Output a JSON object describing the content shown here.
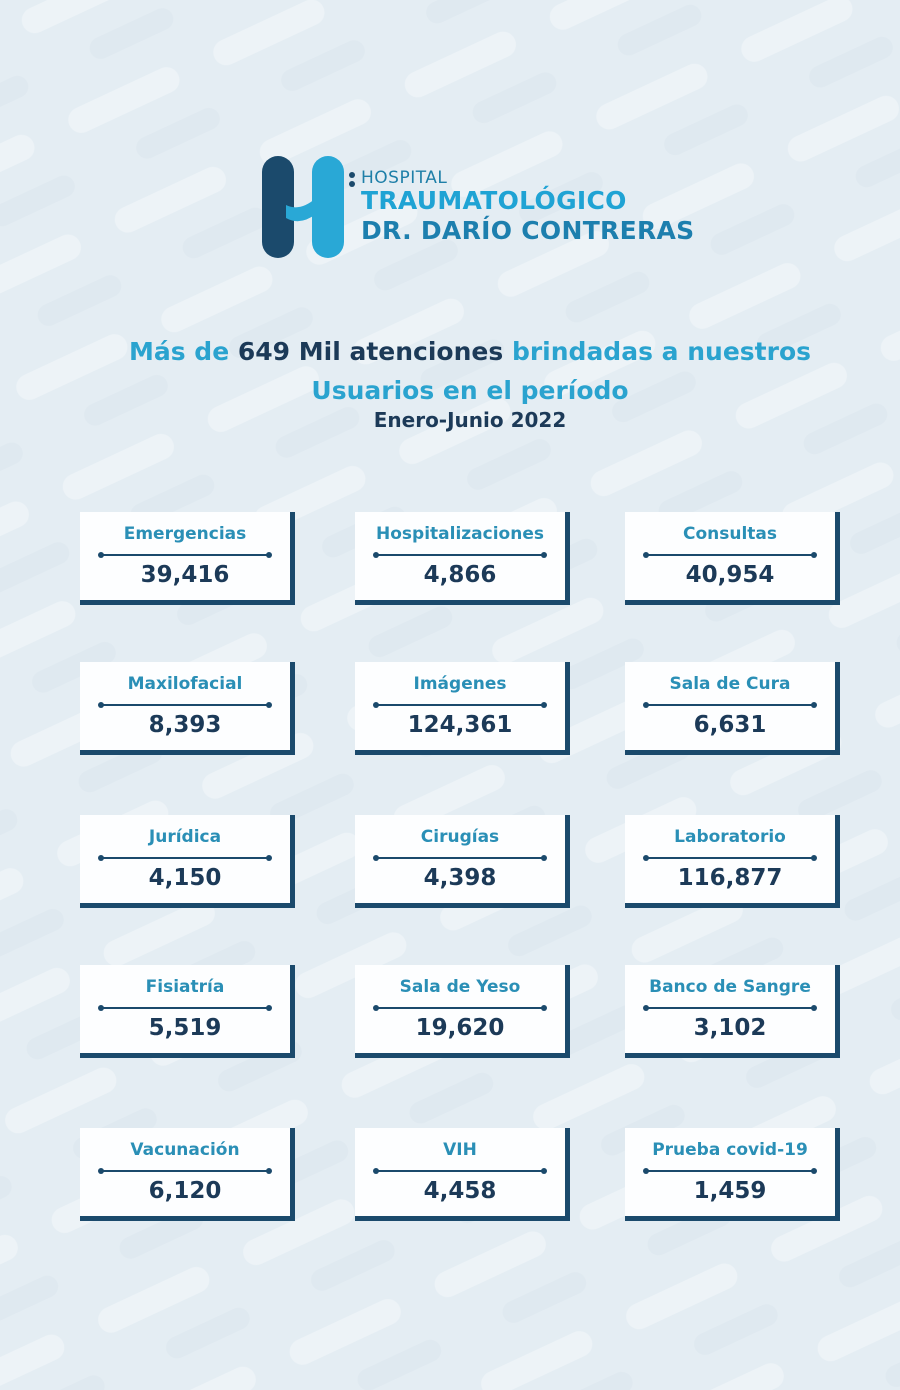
{
  "header": {
    "logo_small": "HOSPITAL",
    "logo_line1": "TRAUMATOLÓGICO",
    "logo_line2": "DR. DARÍO CONTRERAS"
  },
  "headline": {
    "part1": "Más de ",
    "part2": "649 Mil atenciones",
    "part3": " brindadas a nuestros Usuarios en el período",
    "period": "Enero-Junio 2022"
  },
  "cards": [
    {
      "label": "Emergencias",
      "value": "39,416"
    },
    {
      "label": "Hospitalizaciones",
      "value": "4,866"
    },
    {
      "label": "Consultas",
      "value": "40,954"
    },
    {
      "label": "Maxilofacial",
      "value": "8,393"
    },
    {
      "label": "Imágenes",
      "value": "124,361"
    },
    {
      "label": "Sala de Cura",
      "value": "6,631"
    },
    {
      "label": "Jurídica",
      "value": "4,150"
    },
    {
      "label": "Cirugías",
      "value": "4,398"
    },
    {
      "label": "Laboratorio",
      "value": "116,877"
    },
    {
      "label": "Fisiatría",
      "value": "5,519"
    },
    {
      "label": "Sala de Yeso",
      "value": "19,620"
    },
    {
      "label": "Banco de Sangre",
      "value": "3,102"
    },
    {
      "label": "Vacunación",
      "value": "6,120"
    },
    {
      "label": "VIH",
      "value": "4,458"
    },
    {
      "label": "Prueba covid-19",
      "value": "1,459"
    }
  ]
}
